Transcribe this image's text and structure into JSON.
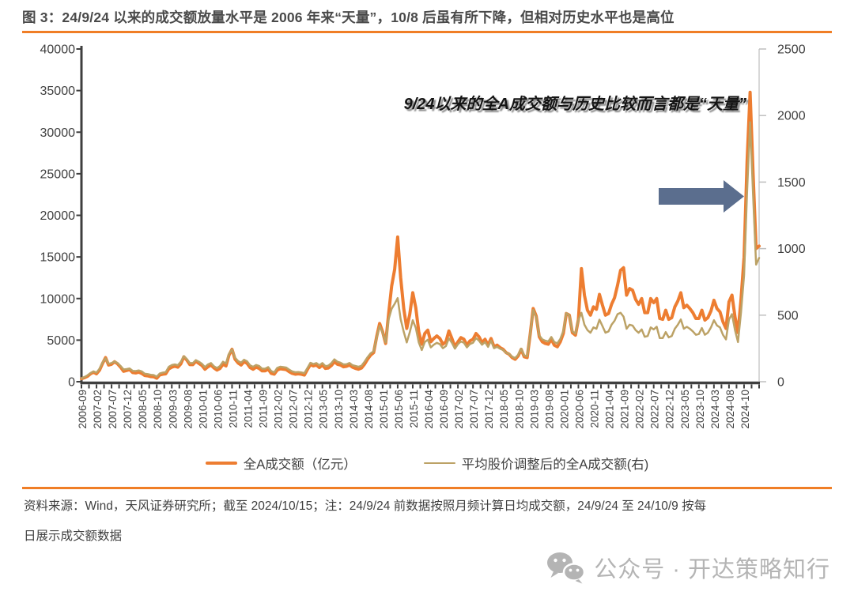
{
  "title": "图 3：24/9/24 以来的成交额放量水平是 2006 年来“天量”，10/8 后虽有所下降，但相对历史水平也是高位",
  "footer": {
    "line1": "资料来源：Wind，天风证券研究所；截至 2024/10/15；注：24/9/24 前数据按照月频计算日均成交额，24/9/24 至 24/10/9 按每",
    "line2": "日展示成交额数据"
  },
  "watermark": {
    "label": "公众号 · 开达策略知行",
    "icon": "wechat-icon"
  },
  "palette": {
    "accent_orange": "#f07e26",
    "series_orange": "#ED7D31",
    "series_olive": "#BCA266",
    "arrow_slate": "#5B6E8E",
    "axis_dark": "#3f3f3f",
    "axis_light": "#bfbfbf",
    "watermark_gray": "#b4b4b4"
  },
  "chart_data": {
    "type": "line",
    "title": "",
    "xlabel": "",
    "ylabel_left": "",
    "ylabel_right": "",
    "grid": false,
    "legend_position": "bottom",
    "annotation": "9/24以来的全A成交额与历史比较而言都是“天量”",
    "axes": {
      "left": {
        "min": 0,
        "max": 40000,
        "step": 5000
      },
      "right": {
        "min": 0,
        "max": 2500,
        "step": 500
      }
    },
    "x_labels": [
      "2006-09",
      "2007-02",
      "2007-07",
      "2007-12",
      "2008-05",
      "2008-10",
      "2009-03",
      "2009-08",
      "2010-01",
      "2010-06",
      "2010-11",
      "2011-04",
      "2011-09",
      "2012-02",
      "2012-07",
      "2012-12",
      "2013-05",
      "2013-10",
      "2014-03",
      "2014-08",
      "2015-01",
      "2015-06",
      "2015-11",
      "2016-04",
      "2016-09",
      "2017-02",
      "2017-07",
      "2017-12",
      "2018-05",
      "2018-10",
      "2019-03",
      "2019-08",
      "2020-01",
      "2020-06",
      "2020-11",
      "2021-04",
      "2021-09",
      "2022-02",
      "2022-07",
      "2022-12",
      "2023-05",
      "2023-10",
      "2024-03",
      "2024-08",
      "2024-10"
    ],
    "x_note": "monthly points 2006-09..2024-09 followed by daily points 2024/9/24-2024/10/15; labels sit at every 5th point",
    "series": [
      {
        "name": "全A成交额（亿元）",
        "axis": "left",
        "color": "#ED7D31",
        "width": 4,
        "values": [
          350,
          480,
          650,
          950,
          1150,
          950,
          1400,
          2200,
          2900,
          2000,
          2100,
          2400,
          2150,
          1750,
          1250,
          1350,
          1450,
          1100,
          1050,
          1150,
          1000,
          750,
          700,
          620,
          600,
          420,
          820,
          900,
          950,
          1550,
          1750,
          1850,
          1750,
          2150,
          3000,
          2600,
          2050,
          2050,
          2450,
          2200,
          1950,
          1500,
          1800,
          2000,
          1650,
          1400,
          1600,
          2100,
          1900,
          3200,
          3900,
          2700,
          2250,
          2000,
          2400,
          2200,
          1700,
          1500,
          1750,
          1600,
          1300,
          1300,
          1500,
          1000,
          900,
          1400,
          1550,
          1500,
          1450,
          1200,
          1000,
          900,
          950,
          900,
          800,
          1450,
          2050,
          1900,
          2000,
          1700,
          2000,
          1600,
          1650,
          1950,
          2400,
          2100,
          2000,
          1800,
          1850,
          2000,
          1750,
          1600,
          1500,
          1650,
          2100,
          2700,
          3200,
          3500,
          5400,
          7000,
          6000,
          4600,
          8200,
          11500,
          13500,
          17400,
          12500,
          8800,
          6400,
          8100,
          10700,
          8900,
          6000,
          4500,
          5800,
          6200,
          4800,
          5200,
          5500,
          5200,
          4500,
          4800,
          6100,
          5200,
          4200,
          4800,
          5300,
          5100,
          4400,
          4900,
          5100,
          5800,
          5400,
          4700,
          5100,
          4400,
          5200,
          4200,
          4400,
          4100,
          3900,
          3500,
          3300,
          2900,
          2700,
          3100,
          3900,
          3000,
          2900,
          5700,
          8800,
          7900,
          5400,
          4800,
          4600,
          4500,
          5100,
          4400,
          4200,
          4800,
          5800,
          8200,
          8000,
          5900,
          5600,
          7500,
          13600,
          10400,
          8600,
          8000,
          9000,
          8700,
          10500,
          9200,
          8000,
          8200,
          9300,
          10100,
          11600,
          13400,
          13700,
          10400,
          11200,
          11000,
          9900,
          9300,
          10000,
          8300,
          8300,
          10000,
          9500,
          10000,
          7600,
          7500,
          8600,
          7500,
          7700,
          9000,
          9700,
          10700,
          8900,
          9200,
          8800,
          8300,
          7600,
          7600,
          8600,
          7400,
          7700,
          8500,
          9800,
          8800,
          8400,
          7200,
          6400,
          9600,
          10400,
          7800,
          5900,
          9900,
          15000,
          26500,
          34800,
          25000,
          16000,
          16300
        ]
      },
      {
        "name": "平均股价调整后的全A成交额(右)",
        "axis": "right",
        "color": "#BCA266",
        "width": 2.5,
        "values": [
          25,
          35,
          48,
          65,
          78,
          68,
          98,
          145,
          175,
          135,
          140,
          152,
          140,
          118,
          92,
          95,
          100,
          82,
          80,
          85,
          78,
          60,
          57,
          52,
          50,
          38,
          62,
          68,
          72,
          112,
          125,
          130,
          124,
          150,
          192,
          170,
          140,
          140,
          162,
          150,
          135,
          110,
          130,
          140,
          116,
          103,
          118,
          150,
          138,
          210,
          242,
          180,
          155,
          143,
          165,
          153,
          123,
          112,
          126,
          118,
          98,
          98,
          110,
          80,
          70,
          104,
          113,
          110,
          106,
          90,
          77,
          71,
          73,
          70,
          64,
          102,
          142,
          133,
          140,
          123,
          140,
          117,
          121,
          140,
          168,
          150,
          143,
          130,
          131,
          141,
          124,
          118,
          112,
          120,
          150,
          184,
          214,
          228,
          330,
          420,
          368,
          295,
          470,
          548,
          585,
          628,
          470,
          375,
          295,
          372,
          462,
          405,
          295,
          238,
          298,
          316,
          258,
          278,
          292,
          282,
          252,
          268,
          326,
          292,
          248,
          282,
          302,
          293,
          258,
          283,
          293,
          328,
          308,
          278,
          298,
          262,
          308,
          252,
          262,
          248,
          238,
          218,
          208,
          188,
          178,
          203,
          248,
          198,
          192,
          358,
          540,
          486,
          348,
          318,
          308,
          302,
          336,
          298,
          288,
          322,
          382,
          515,
          498,
          378,
          362,
          465,
          518,
          428,
          388,
          368,
          408,
          398,
          466,
          418,
          368,
          378,
          428,
          458,
          508,
          518,
          488,
          398,
          428,
          422,
          388,
          368,
          393,
          338,
          343,
          408,
          393,
          413,
          328,
          328,
          373,
          333,
          343,
          398,
          428,
          468,
          398,
          413,
          398,
          378,
          353,
          358,
          403,
          353,
          368,
          408,
          462,
          423,
          408,
          352,
          318,
          468,
          508,
          388,
          298,
          520,
          800,
          1430,
          1950,
          1400,
          880,
          930
        ]
      }
    ]
  }
}
